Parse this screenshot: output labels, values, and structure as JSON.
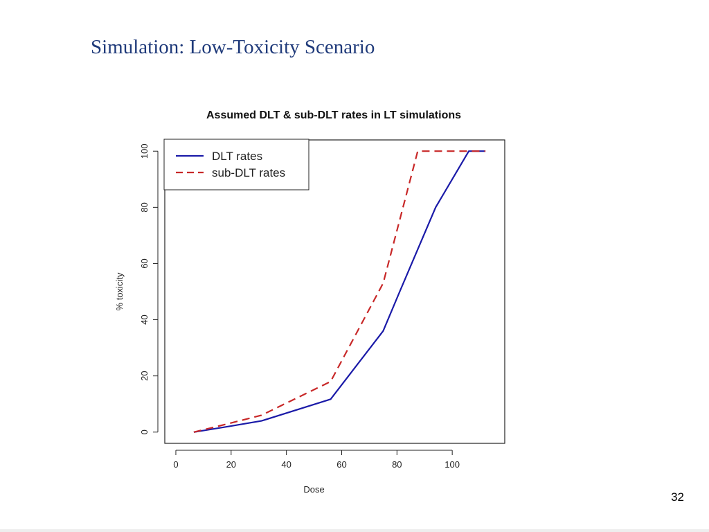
{
  "slide": {
    "title": "Simulation: Low-Toxicity Scenario",
    "page_number": "32"
  },
  "chart_data": {
    "type": "line",
    "title": "Assumed DLT & sub-DLT rates in LT simulations",
    "xlabel": "Dose",
    "ylabel": "% toxicity",
    "xlim": [
      -4,
      119
    ],
    "ylim": [
      -4,
      104
    ],
    "xticks": [
      0,
      20,
      40,
      60,
      80,
      100
    ],
    "yticks": [
      0,
      20,
      40,
      60,
      80,
      100
    ],
    "grid": false,
    "legend_position": "top-left",
    "series": [
      {
        "name": "DLT rates",
        "color": "#1a1aa8",
        "dash": "solid",
        "points": [
          [
            6.5,
            0
          ],
          [
            19,
            2
          ],
          [
            31,
            4
          ],
          [
            56,
            11.7
          ],
          [
            75,
            36
          ],
          [
            81,
            50
          ],
          [
            94,
            80
          ],
          [
            106,
            100
          ],
          [
            112,
            100
          ]
        ]
      },
      {
        "name": "sub-DLT rates",
        "color": "#c82828",
        "dash": "dashed",
        "points": [
          [
            6.5,
            0
          ],
          [
            19,
            3
          ],
          [
            31,
            6
          ],
          [
            56,
            18
          ],
          [
            75,
            53
          ],
          [
            87.5,
            100
          ],
          [
            112,
            100
          ]
        ]
      }
    ]
  }
}
